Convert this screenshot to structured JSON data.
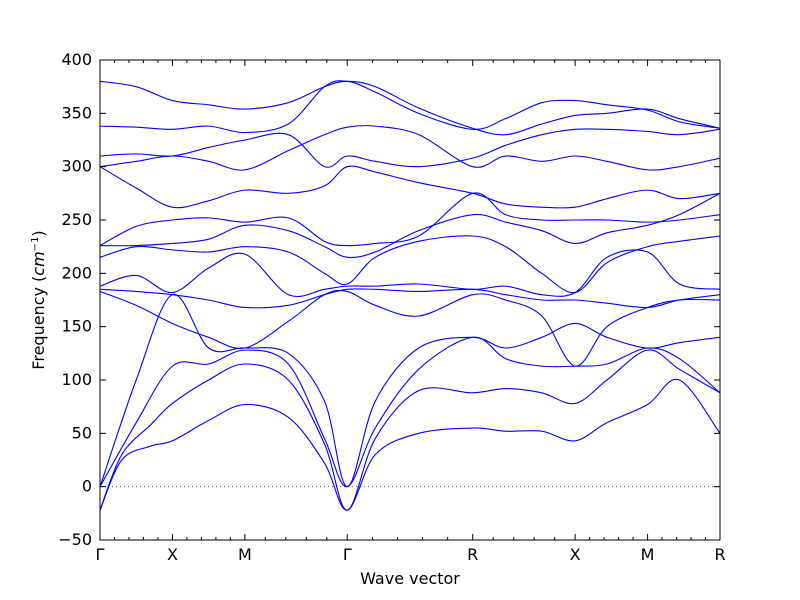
{
  "chart_data": {
    "type": "line",
    "xlabel": "Wave vector",
    "ylabel_prefix": "Frequency (",
    "ylabel_unit": "cm",
    "ylabel_exp": "−1",
    "ylabel_suffix": ")",
    "ylim": [
      -50,
      400
    ],
    "yticks": [
      -50,
      0,
      50,
      100,
      150,
      200,
      250,
      300,
      350,
      400
    ],
    "grid": false,
    "legend": "none",
    "zero_line": true,
    "band_color": "#0000ff",
    "zero_line_color": "#555555",
    "kpath_ticks": [
      {
        "label": "Γ",
        "x": 0
      },
      {
        "label": "X",
        "x": 1
      },
      {
        "label": "M",
        "x": 2
      },
      {
        "label": "Γ",
        "x": 3.414
      },
      {
        "label": "R",
        "x": 5.146
      },
      {
        "label": "X",
        "x": 6.56
      },
      {
        "label": "M",
        "x": 7.56
      },
      {
        "label": "R",
        "x": 8.56
      }
    ],
    "xlim": [
      0,
      8.56
    ],
    "series": [
      {
        "x": [
          0,
          0.3,
          0.7,
          1,
          1.5,
          2,
          2.6,
          3.1,
          3.414,
          3.8,
          4.4,
          5.146,
          5.6,
          6.1,
          6.56,
          7.0,
          7.56,
          8.0,
          8.56
        ],
        "values": [
          -22,
          25,
          38,
          43,
          62,
          77,
          65,
          22,
          -22,
          30,
          50,
          55,
          52,
          52,
          43,
          60,
          77,
          100,
          50
        ]
      },
      {
        "x": [
          0,
          0.3,
          0.7,
          1,
          1.5,
          2,
          2.6,
          3.1,
          3.414,
          3.8,
          4.4,
          5.146,
          5.6,
          6.1,
          6.56,
          7.0,
          7.56,
          8.0,
          8.56
        ],
        "values": [
          -22,
          30,
          58,
          78,
          100,
          115,
          100,
          40,
          -22,
          45,
          90,
          88,
          92,
          88,
          78,
          100,
          128,
          110,
          88
        ]
      },
      {
        "x": [
          0,
          0.5,
          1,
          1.5,
          2,
          2.6,
          3.1,
          3.414,
          3.8,
          4.4,
          5.146,
          5.6,
          6.1,
          6.56,
          7.0,
          7.56,
          8.0,
          8.56
        ],
        "values": [
          0,
          60,
          113,
          115,
          128,
          115,
          45,
          0,
          55,
          110,
          140,
          120,
          113,
          113,
          115,
          130,
          120,
          88
        ]
      },
      {
        "x": [
          0,
          0.5,
          1,
          1.5,
          2,
          2.6,
          3.1,
          3.414,
          3.8,
          4.4,
          5.146,
          5.6,
          6.1,
          6.56,
          7.0,
          7.56,
          8.0,
          8.56
        ],
        "values": [
          0,
          100,
          180,
          130,
          130,
          125,
          80,
          0,
          80,
          130,
          140,
          130,
          140,
          153,
          140,
          130,
          135,
          140
        ]
      },
      {
        "x": [
          0,
          0.5,
          1,
          1.5,
          2,
          2.6,
          3.1,
          3.414,
          3.8,
          4.4,
          5.146,
          5.6,
          6.1,
          6.56,
          7.0,
          7.56,
          8.0,
          8.56
        ],
        "values": [
          183,
          170,
          153,
          140,
          130,
          155,
          180,
          183,
          170,
          160,
          180,
          175,
          160,
          113,
          150,
          168,
          175,
          175
        ]
      },
      {
        "x": [
          0,
          0.5,
          1,
          1.5,
          2,
          2.6,
          3.1,
          3.414,
          3.8,
          4.4,
          5.146,
          5.6,
          6.1,
          6.56,
          7.0,
          7.56,
          8.0,
          8.56
        ],
        "values": [
          185,
          183,
          180,
          175,
          168,
          170,
          180,
          185,
          185,
          183,
          185,
          180,
          175,
          175,
          172,
          168,
          175,
          180
        ]
      },
      {
        "x": [
          0,
          0.5,
          1,
          1.5,
          2,
          2.6,
          3.1,
          3.414,
          3.8,
          4.4,
          5.146,
          5.6,
          6.1,
          6.56,
          7.0,
          7.56,
          8.0,
          8.56
        ],
        "values": [
          188,
          198,
          182,
          205,
          218,
          180,
          185,
          188,
          188,
          190,
          185,
          188,
          180,
          182,
          215,
          220,
          190,
          185
        ]
      },
      {
        "x": [
          0,
          0.5,
          1,
          1.5,
          2,
          2.6,
          3.1,
          3.414,
          3.8,
          4.4,
          5.146,
          5.6,
          6.1,
          6.56,
          7.0,
          7.56,
          8.0,
          8.56
        ],
        "values": [
          215,
          225,
          222,
          220,
          225,
          220,
          200,
          190,
          215,
          230,
          235,
          225,
          200,
          182,
          210,
          225,
          230,
          235
        ]
      },
      {
        "x": [
          0,
          0.5,
          1,
          1.5,
          2,
          2.6,
          3.1,
          3.414,
          3.8,
          4.4,
          5.146,
          5.6,
          6.1,
          6.56,
          7.0,
          7.56,
          8.0,
          8.56
        ],
        "values": [
          226,
          226,
          228,
          232,
          245,
          240,
          225,
          215,
          220,
          240,
          255,
          248,
          240,
          228,
          238,
          245,
          255,
          275
        ]
      },
      {
        "x": [
          0,
          0.5,
          1,
          1.5,
          2,
          2.6,
          3.1,
          3.414,
          3.8,
          4.4,
          5.146,
          5.6,
          6.1,
          6.56,
          7.0,
          7.56,
          8.0,
          8.56
        ],
        "values": [
          226,
          244,
          250,
          252,
          248,
          252,
          230,
          226,
          228,
          235,
          275,
          255,
          250,
          250,
          250,
          248,
          250,
          255
        ]
      },
      {
        "x": [
          0,
          0.5,
          1,
          1.5,
          2,
          2.6,
          3.1,
          3.414,
          3.8,
          4.4,
          5.146,
          5.6,
          6.1,
          6.56,
          7.0,
          7.56,
          8.0,
          8.56
        ],
        "values": [
          300,
          280,
          262,
          268,
          278,
          275,
          282,
          300,
          295,
          285,
          275,
          265,
          262,
          262,
          270,
          278,
          270,
          275
        ]
      },
      {
        "x": [
          0,
          0.5,
          1,
          1.5,
          2,
          2.6,
          3.1,
          3.414,
          3.8,
          4.4,
          5.146,
          5.6,
          6.1,
          6.56,
          7.0,
          7.56,
          8.0,
          8.56
        ],
        "values": [
          300,
          305,
          310,
          305,
          297,
          315,
          330,
          337,
          338,
          330,
          300,
          310,
          305,
          310,
          305,
          297,
          300,
          308
        ]
      },
      {
        "x": [
          0,
          0.5,
          1,
          1.5,
          2,
          2.6,
          3.1,
          3.414,
          3.8,
          4.4,
          5.146,
          5.6,
          6.1,
          6.56,
          7.0,
          7.56,
          8.0,
          8.56
        ],
        "values": [
          310,
          312,
          310,
          318,
          325,
          330,
          300,
          310,
          305,
          300,
          308,
          320,
          330,
          335,
          335,
          333,
          330,
          335
        ]
      },
      {
        "x": [
          0,
          0.5,
          1,
          1.5,
          2,
          2.6,
          3.1,
          3.414,
          3.8,
          4.4,
          5.146,
          5.6,
          6.1,
          6.56,
          7.0,
          7.56,
          8.0,
          8.56
        ],
        "values": [
          338,
          337,
          335,
          338,
          332,
          340,
          375,
          380,
          370,
          350,
          335,
          345,
          360,
          362,
          358,
          353,
          342,
          336
        ]
      },
      {
        "x": [
          0,
          0.5,
          1,
          1.5,
          2,
          2.6,
          3.1,
          3.414,
          3.8,
          4.4,
          5.146,
          5.6,
          6.1,
          6.56,
          7.0,
          7.56,
          8.0,
          8.56
        ],
        "values": [
          380,
          375,
          362,
          358,
          354,
          360,
          375,
          380,
          375,
          355,
          336,
          330,
          340,
          348,
          350,
          354,
          345,
          336
        ]
      }
    ]
  }
}
